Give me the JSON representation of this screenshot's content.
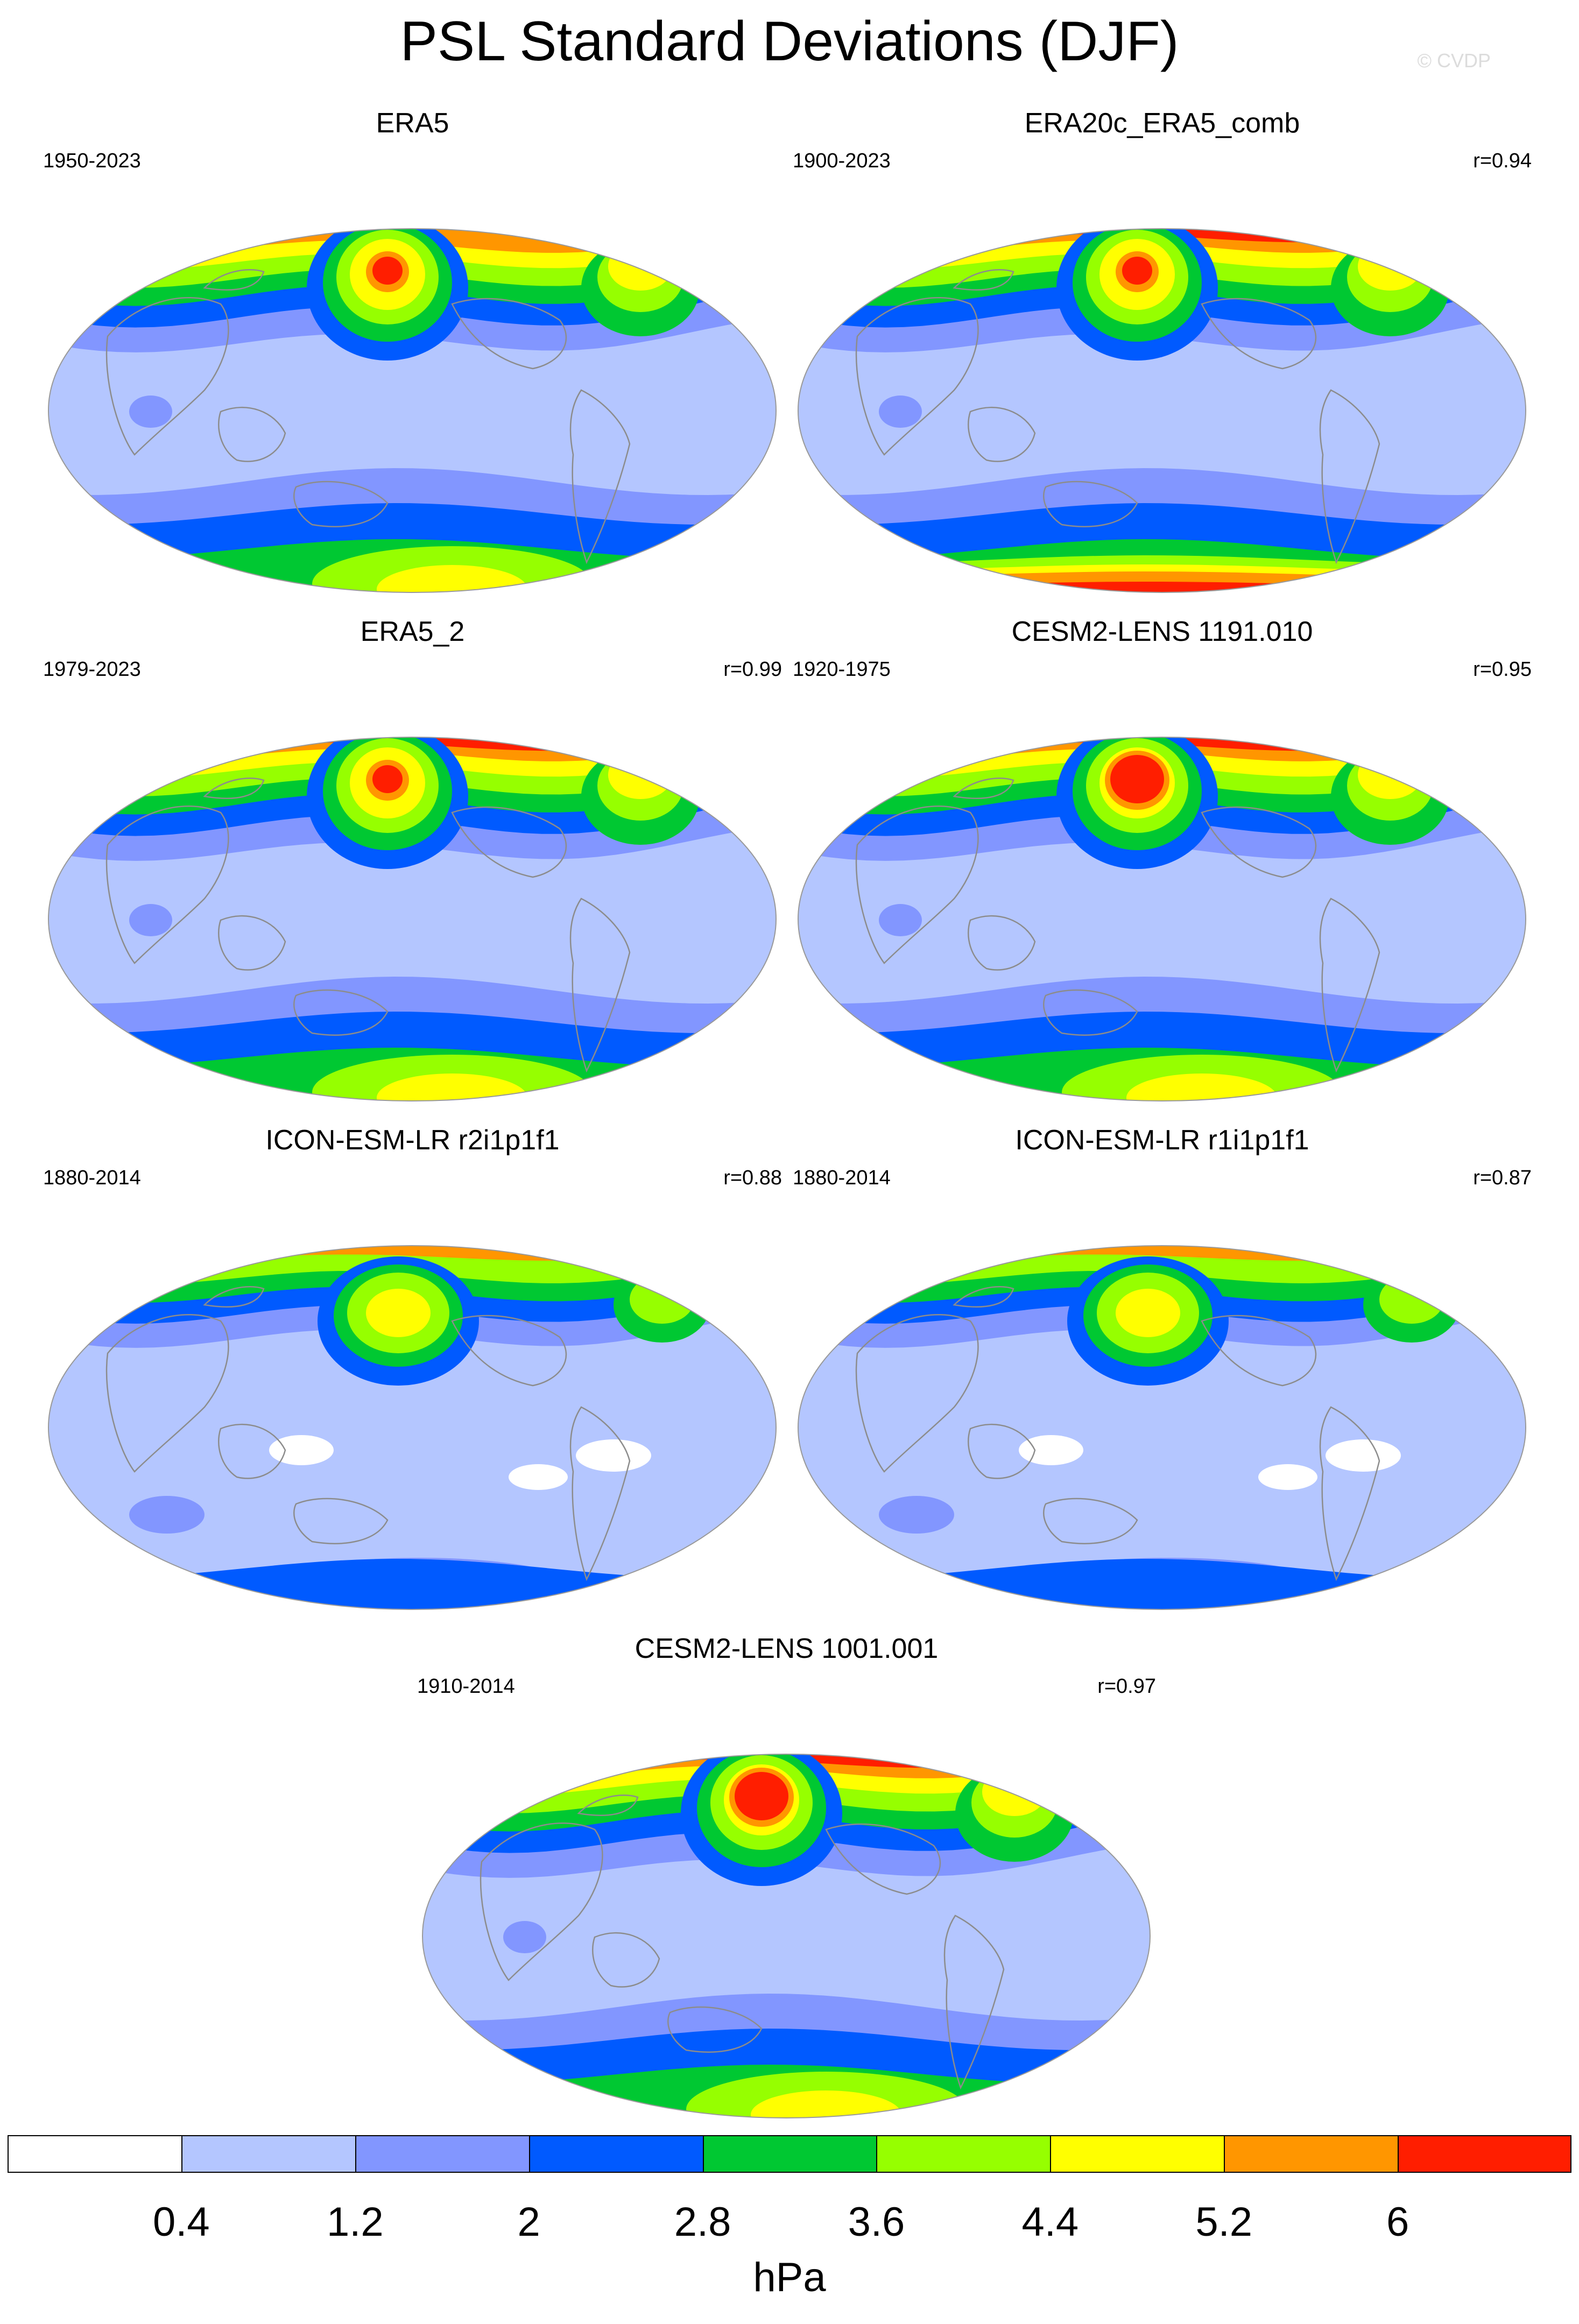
{
  "title": "PSL Standard Deviations (DJF)",
  "copyright": "© CVDP",
  "colors": {
    "levels": [
      "#ffffff",
      "#b4c6ff",
      "#8296ff",
      "#005aff",
      "#00c832",
      "#96ff00",
      "#ffff00",
      "#ff9600",
      "#ff1e00"
    ],
    "coast": "#8c8c8c"
  },
  "colorbar": {
    "labels": [
      "0.4",
      "1.2",
      "2",
      "2.8",
      "3.6",
      "4.4",
      "5.2",
      "6"
    ],
    "unit": "hPa"
  },
  "panels": [
    {
      "title": "ERA5",
      "years": "1950-2023",
      "corr": "",
      "pattern": "era5"
    },
    {
      "title": "ERA20c_ERA5_comb",
      "years": "1900-2023",
      "corr": "r=0.94",
      "pattern": "era20c"
    },
    {
      "title": "ERA5_2",
      "years": "1979-2023",
      "corr": "r=0.99",
      "pattern": "era5_2"
    },
    {
      "title": "CESM2-LENS 1191.010",
      "years": "1920-1975",
      "corr": "r=0.95",
      "pattern": "cesm_a"
    },
    {
      "title": "ICON-ESM-LR r2i1p1f1",
      "years": "1880-2014",
      "corr": "r=0.88",
      "pattern": "icon"
    },
    {
      "title": "ICON-ESM-LR r1i1p1f1",
      "years": "1880-2014",
      "corr": "r=0.87",
      "pattern": "icon"
    },
    {
      "title": "CESM2-LENS 1001.001",
      "years": "1910-2014",
      "corr": "r=0.97",
      "pattern": "cesm_b"
    }
  ]
}
